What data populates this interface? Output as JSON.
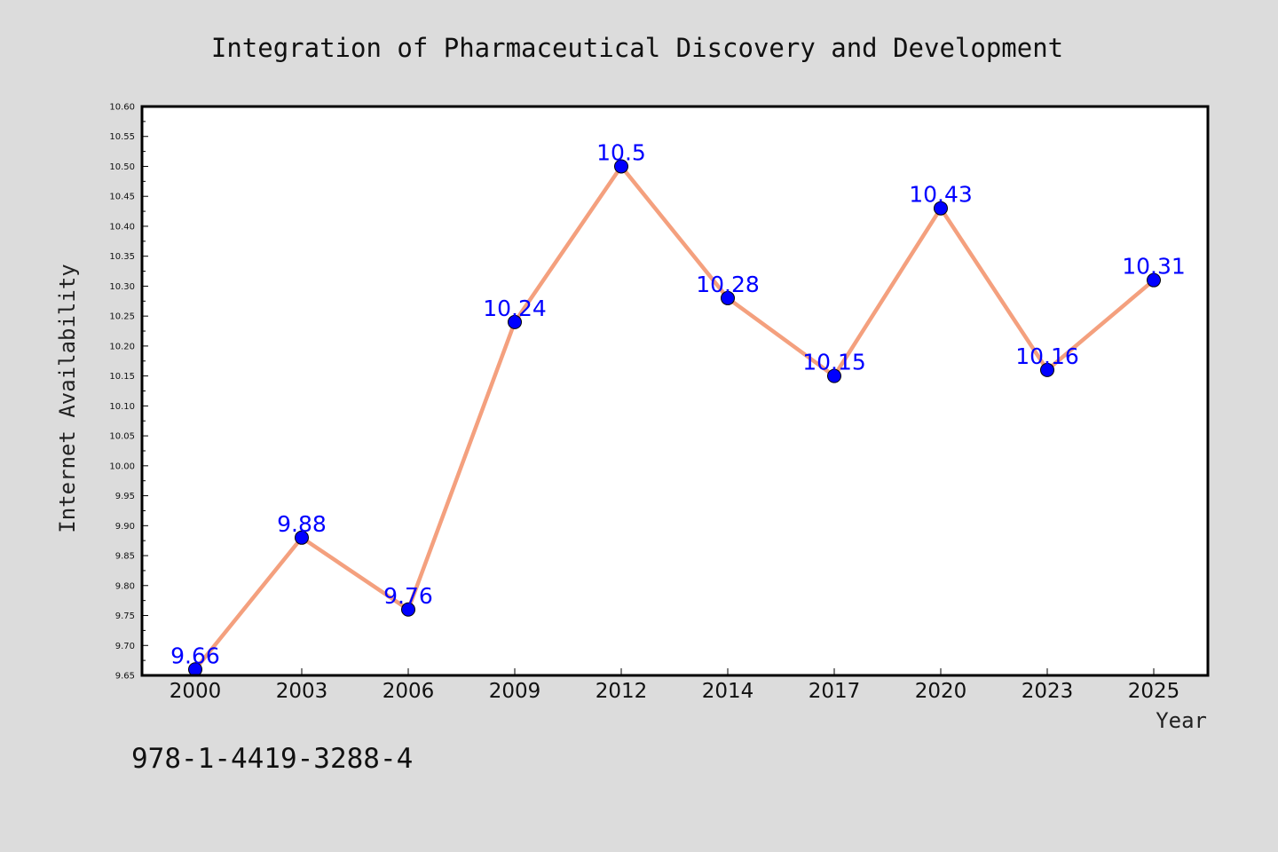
{
  "chart_data": {
    "type": "line",
    "title": "Integration of Pharmaceutical Discovery and Development",
    "xlabel": "Year",
    "ylabel": "Internet Availability",
    "categories": [
      "2000",
      "2003",
      "2006",
      "2009",
      "2012",
      "2014",
      "2017",
      "2020",
      "2023",
      "2025"
    ],
    "series": [
      {
        "values": [
          9.66,
          9.88,
          9.76,
          10.24,
          10.5,
          10.28,
          10.15,
          10.43,
          10.16,
          10.31
        ],
        "labels": [
          "9.66",
          "9.88",
          "9.76",
          "10.24",
          "10.5",
          "10.28",
          "10.15",
          "10.43",
          "10.16",
          "10.31"
        ]
      }
    ],
    "ylim": [
      9.65,
      10.6
    ],
    "yticks": [
      "9.65",
      "9.70",
      "9.75",
      "9.80",
      "9.85",
      "9.90",
      "9.95",
      "10.00",
      "10.05",
      "10.10",
      "10.15",
      "10.20",
      "10.25",
      "10.30",
      "10.35",
      "10.40",
      "10.45",
      "10.50",
      "10.55",
      "10.60"
    ],
    "grid": false,
    "legend": "none",
    "colors": {
      "line": "#f4a07e",
      "marker": "#0000ff",
      "label": "#0000ff",
      "background": "#dcdcdc",
      "plot_background": "#ffffff"
    }
  },
  "footer_text": "978-1-4419-3288-4"
}
